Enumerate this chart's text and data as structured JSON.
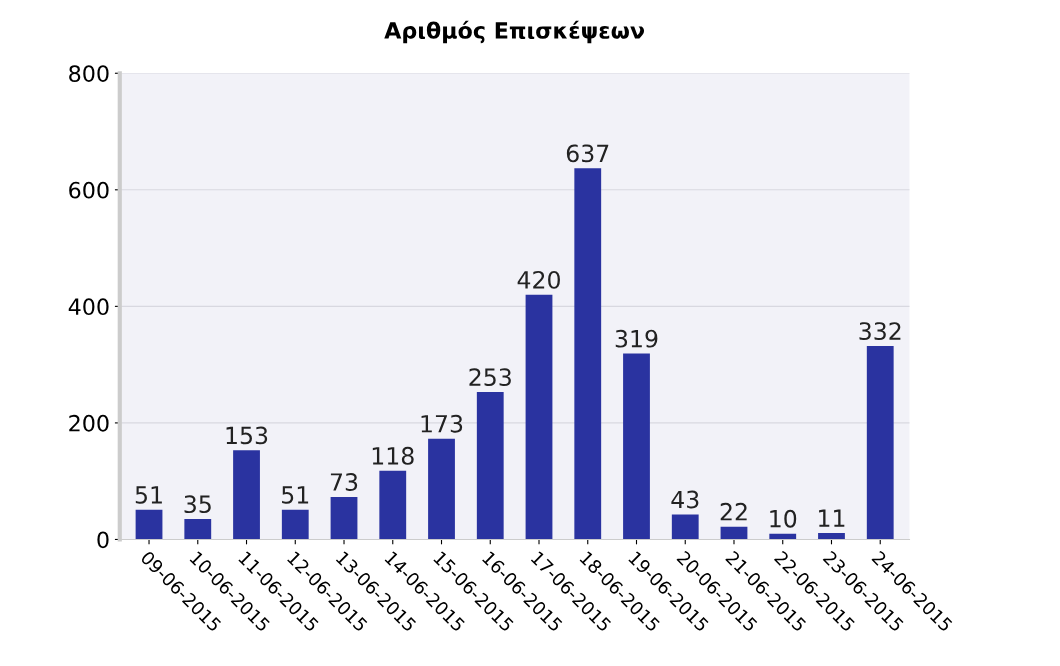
{
  "chart_data": {
    "type": "bar",
    "title": "Αριθμός Επισκέψεων",
    "categories": [
      "09-06-2015",
      "10-06-2015",
      "11-06-2015",
      "12-06-2015",
      "13-06-2015",
      "14-06-2015",
      "15-06-2015",
      "16-06-2015",
      "17-06-2015",
      "18-06-2015",
      "19-06-2015",
      "20-06-2015",
      "21-06-2015",
      "22-06-2015",
      "23-06-2015",
      "24-06-2015"
    ],
    "values": [
      51,
      35,
      153,
      51,
      73,
      118,
      173,
      253,
      420,
      637,
      319,
      43,
      22,
      10,
      11,
      332
    ],
    "color": "#2a33a0",
    "ylim": [
      0,
      800
    ],
    "yticks": [
      0,
      200,
      400,
      600,
      800
    ],
    "grid": "y",
    "data_labels": true
  }
}
